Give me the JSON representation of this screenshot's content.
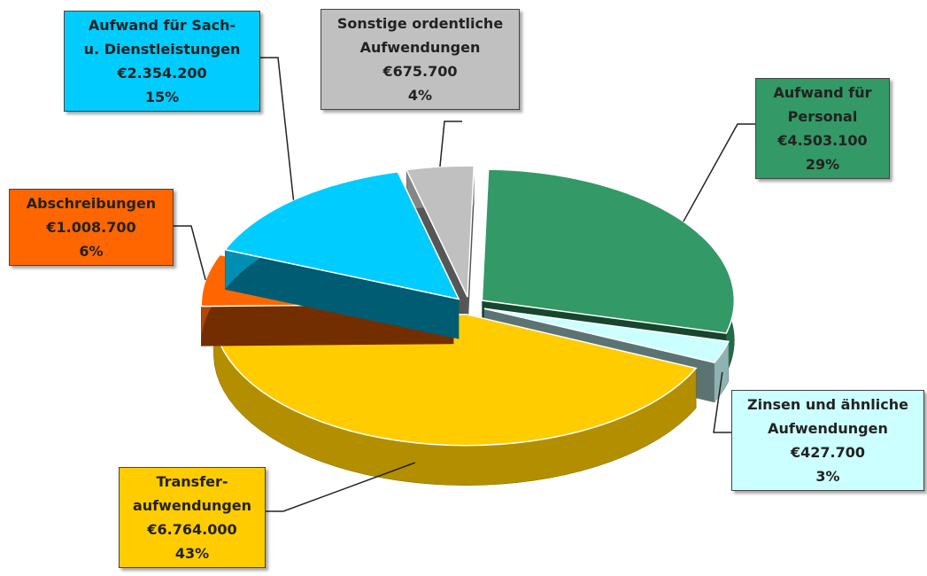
{
  "chart_data": {
    "type": "pie",
    "categories": [
      "Sonstige ordentliche\nAufwendungen",
      "Aufwand für\nPersonal",
      "Zinsen und ähnliche\nAufwendungen",
      "Transfer-\naufwendungen",
      "Abschreibungen",
      "Aufwand für Sach-\nu. Dienstleistungen"
    ],
    "values": [
      675700,
      4503100,
      427700,
      6764000,
      1008700,
      2354200
    ],
    "value_labels": [
      "€675.700",
      "€4.503.100",
      "€427.700",
      "€6.764.000",
      "€1.008.700",
      "€2.354.200"
    ],
    "percents": [
      4,
      29,
      3,
      43,
      6,
      15
    ],
    "percent_labels": [
      "4%",
      "29%",
      "3%",
      "43%",
      "6%",
      "15%"
    ],
    "colors": [
      "#c0c0c0",
      "#339966",
      "#ccffff",
      "#ffcc00",
      "#ff6600",
      "#00ccff"
    ]
  }
}
